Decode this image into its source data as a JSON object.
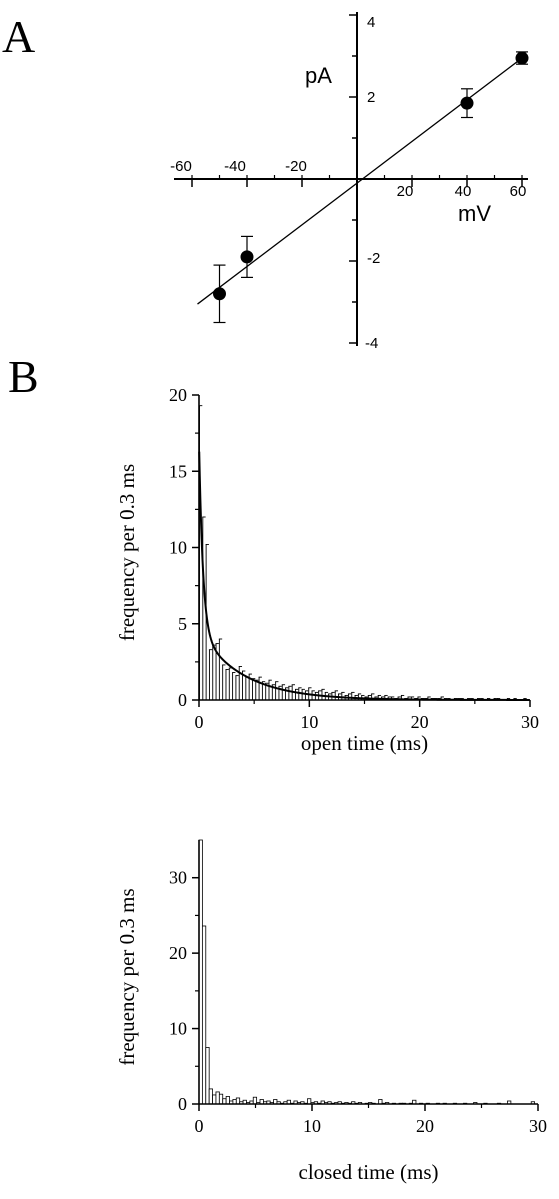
{
  "panels": {
    "a": "A",
    "b": "B"
  },
  "chart_data": [
    {
      "type": "scatter",
      "xlabel": "mV",
      "ylabel": "pA",
      "xlim": [
        -60,
        60
      ],
      "ylim": [
        -4,
        4
      ],
      "x_tick_labels": [
        "-60",
        "-40",
        "-20",
        "20",
        "40",
        "60"
      ],
      "y_tick_labels": [
        "4",
        "2",
        "-2",
        "-4"
      ],
      "points": [
        {
          "x": -50,
          "y": -2.8,
          "err": 0.7
        },
        {
          "x": -40,
          "y": -1.9,
          "err": 0.5
        },
        {
          "x": 40,
          "y": 1.85,
          "err": 0.35
        },
        {
          "x": 60,
          "y": 2.95,
          "err": 0.15
        }
      ],
      "fit_line": {
        "x": [
          -58,
          60
        ],
        "y": [
          -3.05,
          2.95
        ]
      }
    },
    {
      "type": "bar",
      "xlabel": "open time (ms)",
      "ylabel": "frequency per 0.3 ms",
      "xlim": [
        0,
        30
      ],
      "ylim": [
        0,
        20
      ],
      "x_tick_labels": [
        "0",
        "10",
        "20",
        "30"
      ],
      "y_tick_labels": [
        "0",
        "5",
        "10",
        "15",
        "20"
      ],
      "bin_width_ms": 0.3,
      "bar_values": [
        19.3,
        12.0,
        10.2,
        3.3,
        3.6,
        3.7,
        4.0,
        2.3,
        2.0,
        2.1,
        1.8,
        1.6,
        2.2,
        1.9,
        1.5,
        1.7,
        1.4,
        1.3,
        1.5,
        1.2,
        1.1,
        1.3,
        1.0,
        1.2,
        0.9,
        1.0,
        0.8,
        0.9,
        1.0,
        0.7,
        0.8,
        0.7,
        0.6,
        0.8,
        0.6,
        0.5,
        0.6,
        0.7,
        0.5,
        0.4,
        0.5,
        0.6,
        0.4,
        0.5,
        0.3,
        0.4,
        0.5,
        0.3,
        0.4,
        0.3,
        0.2,
        0.3,
        0.4,
        0.2,
        0.3,
        0.2,
        0.3,
        0.2,
        0.2,
        0.1,
        0.2,
        0.3,
        0.1,
        0.2,
        0.2,
        0.1,
        0.2,
        0.1,
        0.1,
        0.2,
        0.1,
        0.1,
        0.1,
        0.2,
        0.1,
        0.1,
        0.0,
        0.1,
        0.1,
        0.1,
        0.0,
        0.1,
        0.1,
        0.0,
        0.1,
        0.1,
        0.0,
        0.1,
        0.0,
        0.1,
        0.1,
        0.0,
        0.0,
        0.1,
        0.0,
        0.1,
        0.0,
        0.0,
        0.1,
        0.0
      ],
      "fit_curve": {
        "components": [
          {
            "amplitude": 12.5,
            "tau_ms": 0.35
          },
          {
            "amplitude": 4.5,
            "tau_ms": 4.0
          }
        ]
      }
    },
    {
      "type": "bar",
      "xlabel": "closed time (ms)",
      "ylabel": "frequency per 0.3 ms",
      "xlim": [
        0,
        30
      ],
      "ylim": [
        0,
        35
      ],
      "x_tick_labels": [
        "0",
        "10",
        "20",
        "30"
      ],
      "y_tick_labels": [
        "0",
        "10",
        "20",
        "30"
      ],
      "bin_width_ms": 0.3,
      "bar_values": [
        35.0,
        23.6,
        7.5,
        2.0,
        1.2,
        1.6,
        1.3,
        0.7,
        1.0,
        0.4,
        0.6,
        0.8,
        0.3,
        0.5,
        0.2,
        0.4,
        0.9,
        0.2,
        0.6,
        0.3,
        0.4,
        0.2,
        0.6,
        0.3,
        0.1,
        0.3,
        0.5,
        0.1,
        0.4,
        0.2,
        0.3,
        0.1,
        0.7,
        0.2,
        0.3,
        0.1,
        0.4,
        0.2,
        0.3,
        0.1,
        0.2,
        0.3,
        0.1,
        0.2,
        0.1,
        0.3,
        0.1,
        0.2,
        0.0,
        0.1,
        0.2,
        0.1,
        0.0,
        0.6,
        0.1,
        0.2,
        0.0,
        0.1,
        0.0,
        0.1,
        0.1,
        0.0,
        0.1,
        0.5,
        0.0,
        0.1,
        0.0,
        0.1,
        0.0,
        0.0,
        0.1,
        0.0,
        0.1,
        0.0,
        0.0,
        0.1,
        0.0,
        0.0,
        0.1,
        0.0,
        0.0,
        0.2,
        0.0,
        0.0,
        0.1,
        0.0,
        0.0,
        0.0,
        0.1,
        0.0,
        0.0,
        0.4,
        0.0,
        0.0,
        0.0,
        0.0,
        0.0,
        0.0,
        0.3,
        0.0
      ]
    }
  ]
}
